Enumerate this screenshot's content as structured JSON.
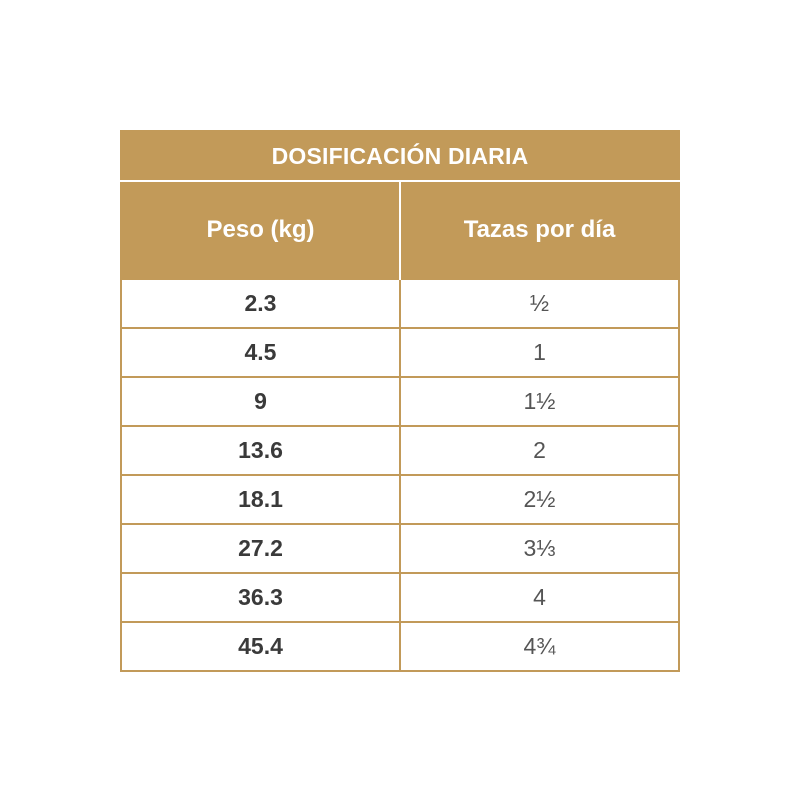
{
  "table": {
    "title": "DOSIFICACIÓN DIARIA",
    "headers": [
      "Peso (kg)",
      "Tazas por día"
    ],
    "rows": [
      {
        "weight": "2.3",
        "cups": "½"
      },
      {
        "weight": "4.5",
        "cups": "1"
      },
      {
        "weight": "9",
        "cups": "1½"
      },
      {
        "weight": "13.6",
        "cups": "2"
      },
      {
        "weight": "18.1",
        "cups": "2½"
      },
      {
        "weight": "27.2",
        "cups": "3⅓"
      },
      {
        "weight": "36.3",
        "cups": "4"
      },
      {
        "weight": "45.4",
        "cups": "4¾"
      }
    ]
  },
  "colors": {
    "accent": "#c29a59",
    "header_text": "#ffffff",
    "weight_text": "#3a3a3a",
    "cups_text": "#555555"
  }
}
